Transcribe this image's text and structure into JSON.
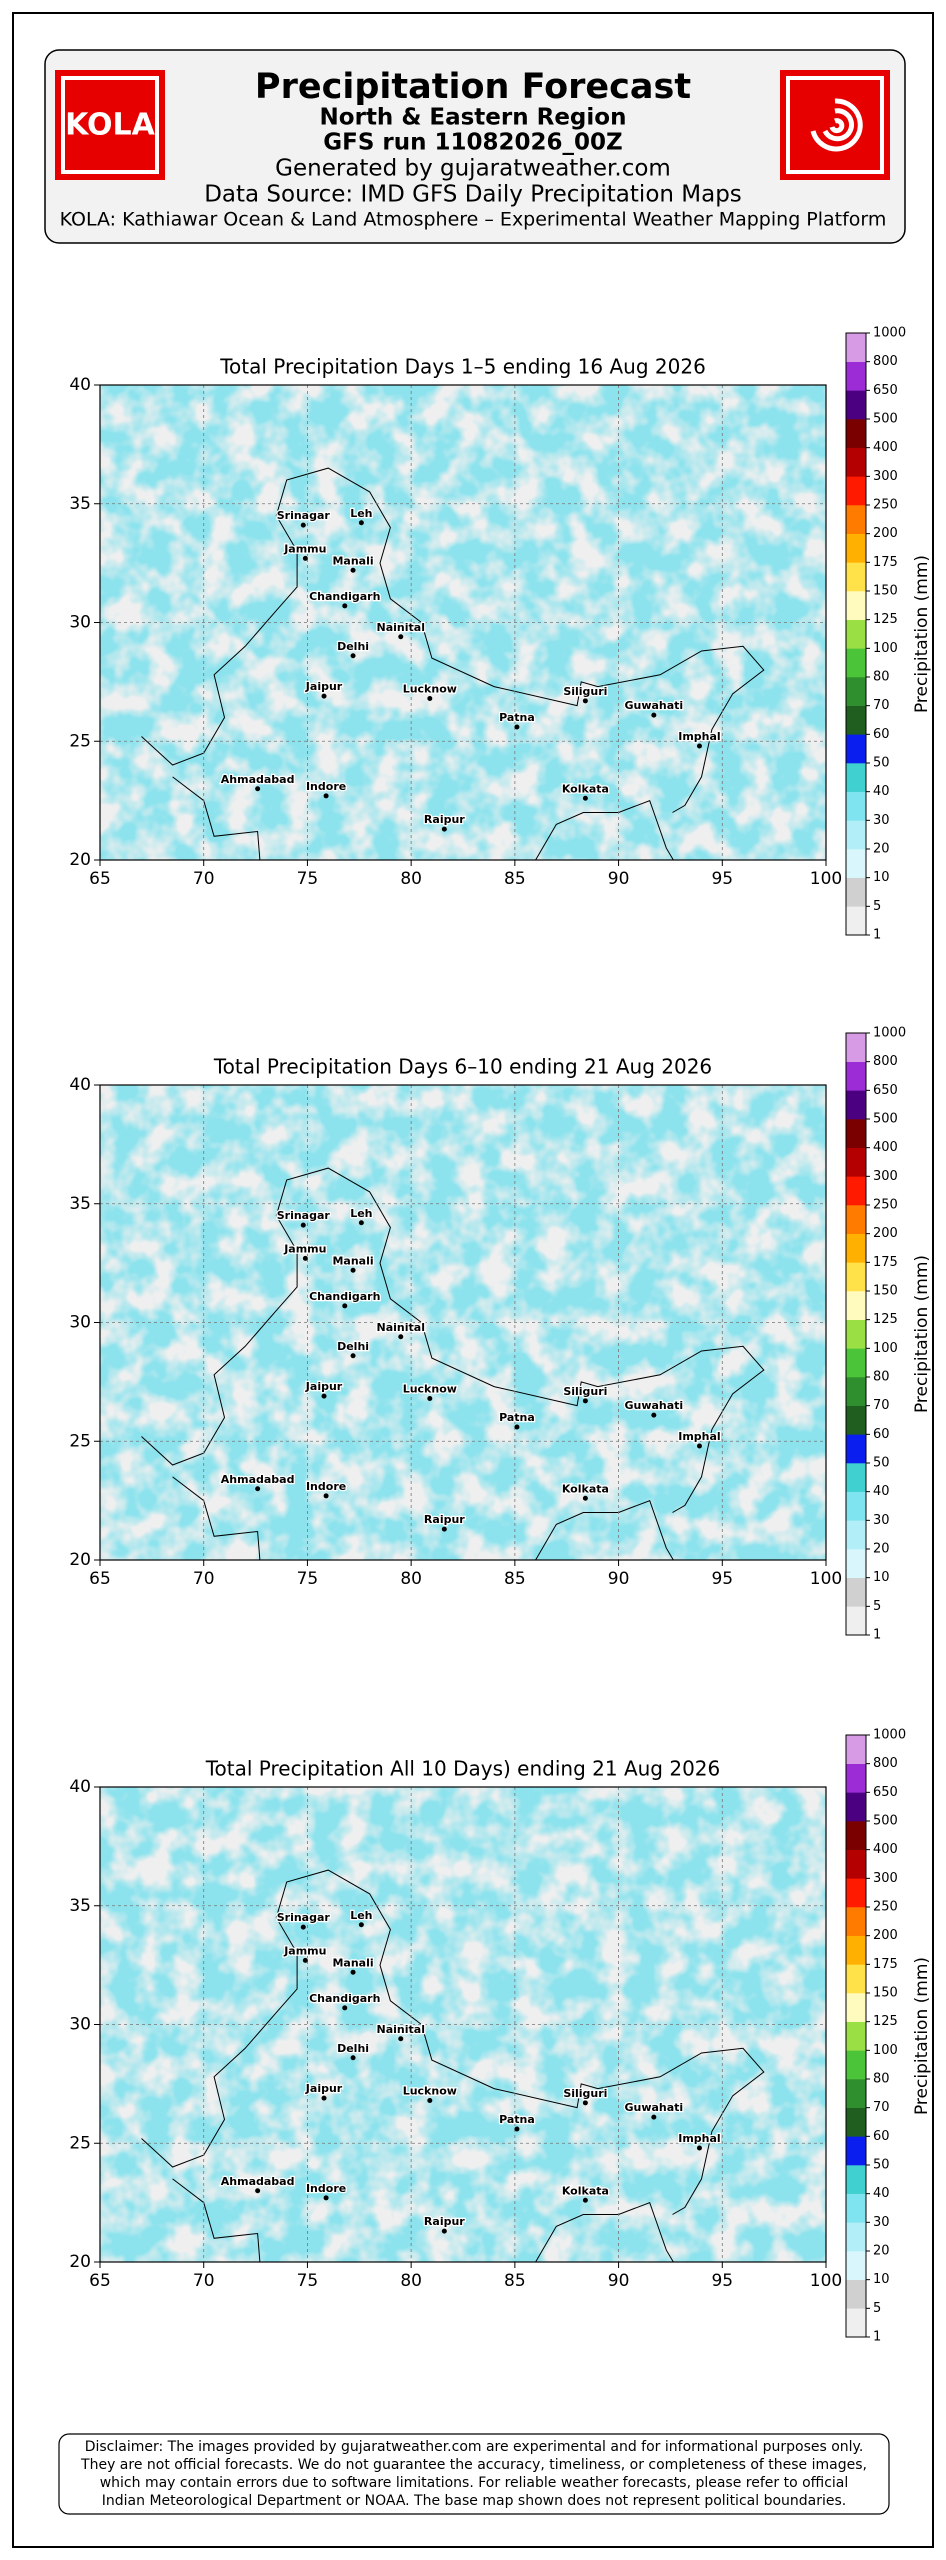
{
  "header": {
    "title": "Precipitation Forecast",
    "region": "North & Eastern Region",
    "run": "GFS run 11082026_00Z",
    "generated": "Generated by gujaratweather.com",
    "source": "Data Source: IMD GFS Daily Precipitation Maps",
    "platform": "KOLA: Kathiawar Ocean & Land Atmosphere – Experimental Weather Mapping Platform",
    "logo_text": "KOLA"
  },
  "maps": [
    {
      "title": "Total Precipitation Days 1–5 ending 16 Aug 2026",
      "seed": 3,
      "xlim": [
        65,
        100
      ],
      "ylim": [
        20,
        40
      ],
      "xticks": [
        65,
        70,
        75,
        80,
        85,
        90,
        95,
        100
      ],
      "yticks": [
        20,
        25,
        30,
        35,
        40
      ],
      "colorbar": {
        "label": "Precipitation (mm)",
        "levels": [
          1,
          5,
          10,
          20,
          30,
          40,
          50,
          60,
          70,
          80,
          100,
          125,
          150,
          175,
          200,
          250,
          300,
          400,
          500,
          650,
          800,
          1000
        ],
        "colors": [
          "#efefef",
          "#d0d0d0",
          "#d8f6fb",
          "#b2eef7",
          "#7fe3f0",
          "#40d0cf",
          "#0a1ef0",
          "#1f5e1f",
          "#2f8f2f",
          "#4cc43a",
          "#9ae045",
          "#fffbbf",
          "#ffe14a",
          "#ffb000",
          "#ff7b00",
          "#ff1a00",
          "#b40000",
          "#7a0000",
          "#4b0082",
          "#9b2cd6",
          "#d79be6"
        ]
      },
      "cities": [
        {
          "name": "Srinagar",
          "lon": 74.8,
          "lat": 34.1
        },
        {
          "name": "Leh",
          "lon": 77.6,
          "lat": 34.2
        },
        {
          "name": "Jammu",
          "lon": 74.9,
          "lat": 32.7
        },
        {
          "name": "Manali",
          "lon": 77.2,
          "lat": 32.2
        },
        {
          "name": "Chandigarh",
          "lon": 76.8,
          "lat": 30.7
        },
        {
          "name": "Nainital",
          "lon": 79.5,
          "lat": 29.4
        },
        {
          "name": "Delhi",
          "lon": 77.2,
          "lat": 28.6
        },
        {
          "name": "Jaipur",
          "lon": 75.8,
          "lat": 26.9
        },
        {
          "name": "Lucknow",
          "lon": 80.9,
          "lat": 26.8
        },
        {
          "name": "Patna",
          "lon": 85.1,
          "lat": 25.6
        },
        {
          "name": "Siliguri",
          "lon": 88.4,
          "lat": 26.7
        },
        {
          "name": "Guwahati",
          "lon": 91.7,
          "lat": 26.1
        },
        {
          "name": "Imphal",
          "lon": 93.9,
          "lat": 24.8
        },
        {
          "name": "Kolkata",
          "lon": 88.4,
          "lat": 22.6
        },
        {
          "name": "Ahmadabad",
          "lon": 72.6,
          "lat": 23.0
        },
        {
          "name": "Indore",
          "lon": 75.9,
          "lat": 22.7
        },
        {
          "name": "Raipur",
          "lon": 81.6,
          "lat": 21.3
        }
      ]
    },
    {
      "title": "Total Precipitation Days 6–10 ending 21 Aug 2026",
      "seed": 7,
      "xlim": [
        65,
        100
      ],
      "ylim": [
        20,
        40
      ],
      "xticks": [
        65,
        70,
        75,
        80,
        85,
        90,
        95,
        100
      ],
      "yticks": [
        20,
        25,
        30,
        35,
        40
      ],
      "colorbar": {
        "label": "Precipitation (mm)",
        "levels": [
          1,
          5,
          10,
          20,
          30,
          40,
          50,
          60,
          70,
          80,
          100,
          125,
          150,
          175,
          200,
          250,
          300,
          400,
          500,
          650,
          800,
          1000
        ],
        "colors": [
          "#efefef",
          "#d0d0d0",
          "#d8f6fb",
          "#b2eef7",
          "#7fe3f0",
          "#40d0cf",
          "#0a1ef0",
          "#1f5e1f",
          "#2f8f2f",
          "#4cc43a",
          "#9ae045",
          "#fffbbf",
          "#ffe14a",
          "#ffb000",
          "#ff7b00",
          "#ff1a00",
          "#b40000",
          "#7a0000",
          "#4b0082",
          "#9b2cd6",
          "#d79be6"
        ]
      },
      "cities": [
        {
          "name": "Srinagar",
          "lon": 74.8,
          "lat": 34.1
        },
        {
          "name": "Leh",
          "lon": 77.6,
          "lat": 34.2
        },
        {
          "name": "Jammu",
          "lon": 74.9,
          "lat": 32.7
        },
        {
          "name": "Manali",
          "lon": 77.2,
          "lat": 32.2
        },
        {
          "name": "Chandigarh",
          "lon": 76.8,
          "lat": 30.7
        },
        {
          "name": "Nainital",
          "lon": 79.5,
          "lat": 29.4
        },
        {
          "name": "Delhi",
          "lon": 77.2,
          "lat": 28.6
        },
        {
          "name": "Jaipur",
          "lon": 75.8,
          "lat": 26.9
        },
        {
          "name": "Lucknow",
          "lon": 80.9,
          "lat": 26.8
        },
        {
          "name": "Patna",
          "lon": 85.1,
          "lat": 25.6
        },
        {
          "name": "Siliguri",
          "lon": 88.4,
          "lat": 26.7
        },
        {
          "name": "Guwahati",
          "lon": 91.7,
          "lat": 26.1
        },
        {
          "name": "Imphal",
          "lon": 93.9,
          "lat": 24.8
        },
        {
          "name": "Kolkata",
          "lon": 88.4,
          "lat": 22.6
        },
        {
          "name": "Ahmadabad",
          "lon": 72.6,
          "lat": 23.0
        },
        {
          "name": "Indore",
          "lon": 75.9,
          "lat": 22.7
        },
        {
          "name": "Raipur",
          "lon": 81.6,
          "lat": 21.3
        }
      ]
    },
    {
      "title": "Total Precipitation All 10 Days) ending 21 Aug 2026",
      "seed": 11,
      "xlim": [
        65,
        100
      ],
      "ylim": [
        20,
        40
      ],
      "xticks": [
        65,
        70,
        75,
        80,
        85,
        90,
        95,
        100
      ],
      "yticks": [
        20,
        25,
        30,
        35,
        40
      ],
      "colorbar": {
        "label": "Precipitation (mm)",
        "levels": [
          1,
          5,
          10,
          20,
          30,
          40,
          50,
          60,
          70,
          80,
          100,
          125,
          150,
          175,
          200,
          250,
          300,
          400,
          500,
          650,
          800,
          1000
        ],
        "colors": [
          "#efefef",
          "#d0d0d0",
          "#d8f6fb",
          "#b2eef7",
          "#7fe3f0",
          "#40d0cf",
          "#0a1ef0",
          "#1f5e1f",
          "#2f8f2f",
          "#4cc43a",
          "#9ae045",
          "#fffbbf",
          "#ffe14a",
          "#ffb000",
          "#ff7b00",
          "#ff1a00",
          "#b40000",
          "#7a0000",
          "#4b0082",
          "#9b2cd6",
          "#d79be6"
        ]
      },
      "cities": [
        {
          "name": "Srinagar",
          "lon": 74.8,
          "lat": 34.1
        },
        {
          "name": "Leh",
          "lon": 77.6,
          "lat": 34.2
        },
        {
          "name": "Jammu",
          "lon": 74.9,
          "lat": 32.7
        },
        {
          "name": "Manali",
          "lon": 77.2,
          "lat": 32.2
        },
        {
          "name": "Chandigarh",
          "lon": 76.8,
          "lat": 30.7
        },
        {
          "name": "Nainital",
          "lon": 79.5,
          "lat": 29.4
        },
        {
          "name": "Delhi",
          "lon": 77.2,
          "lat": 28.6
        },
        {
          "name": "Jaipur",
          "lon": 75.8,
          "lat": 26.9
        },
        {
          "name": "Lucknow",
          "lon": 80.9,
          "lat": 26.8
        },
        {
          "name": "Patna",
          "lon": 85.1,
          "lat": 25.6
        },
        {
          "name": "Siliguri",
          "lon": 88.4,
          "lat": 26.7
        },
        {
          "name": "Guwahati",
          "lon": 91.7,
          "lat": 26.1
        },
        {
          "name": "Imphal",
          "lon": 93.9,
          "lat": 24.8
        },
        {
          "name": "Kolkata",
          "lon": 88.4,
          "lat": 22.6
        },
        {
          "name": "Ahmadabad",
          "lon": 72.6,
          "lat": 23.0
        },
        {
          "name": "Indore",
          "lon": 75.9,
          "lat": 22.7
        },
        {
          "name": "Raipur",
          "lon": 81.6,
          "lat": 21.3
        }
      ]
    }
  ],
  "disclaimer": [
    "Disclaimer: The images provided by gujaratweather.com are experimental and for informational purposes only.",
    "They are not official forecasts. We do not guarantee the accuracy, timeliness, or completeness of these images,",
    "which may contain errors due to software limitations. For reliable weather forecasts, please refer to official",
    "Indian Meteorological Department or NOAA. The base map shown does not represent political boundaries."
  ]
}
